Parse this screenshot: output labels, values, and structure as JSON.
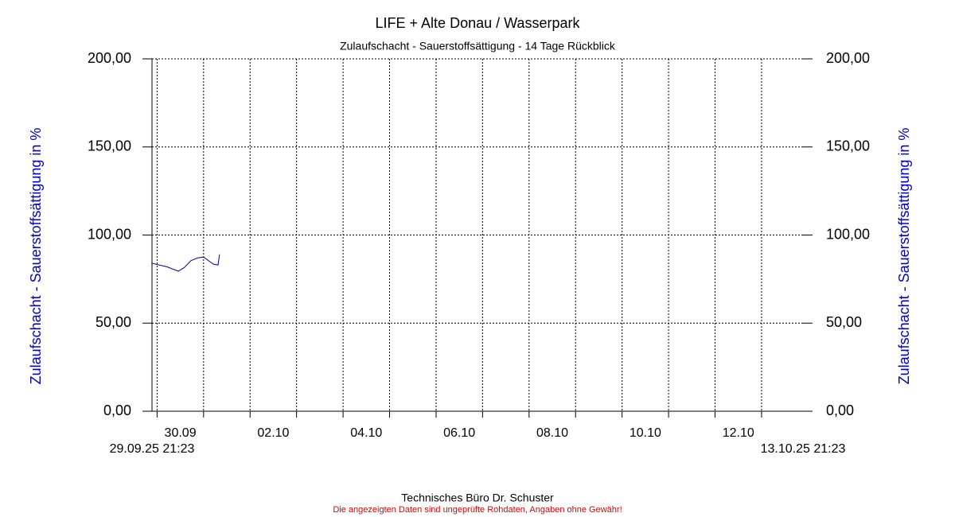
{
  "chart_data": {
    "type": "line",
    "title": "LIFE + Alte Donau / Wasserpark",
    "subtitle": "Zulaufschacht - Sauerstoffsättigung - 14 Tage Rückblick",
    "ylabel": "Zulaufschacht - Sauerstoffsättigung in %",
    "footer": "Technisches Büro Dr. Schuster",
    "disclaimer": "Die angezeigten Daten sind ungeprüfte Rohdaten, Angaben ohne Gewähr!",
    "xlim": [
      {
        "value": "2025-09-29T21:23",
        "label": "29.09.25 21:23"
      },
      {
        "value": "2025-10-13T21:23",
        "label": "13.10.25 21:23"
      }
    ],
    "xticks": [
      {
        "value": "2025-09-30T12:00",
        "label": "30.09"
      },
      {
        "value": "2025-10-02T12:00",
        "label": "02.10"
      },
      {
        "value": "2025-10-04T12:00",
        "label": "04.10"
      },
      {
        "value": "2025-10-06T12:00",
        "label": "06.10"
      },
      {
        "value": "2025-10-08T12:00",
        "label": "08.10"
      },
      {
        "value": "2025-10-10T12:00",
        "label": "10.10"
      },
      {
        "value": "2025-10-12T12:00",
        "label": "12.10"
      }
    ],
    "xgrid": [
      "2025-09-30T00:00",
      "2025-10-01T00:00",
      "2025-10-02T00:00",
      "2025-10-03T00:00",
      "2025-10-04T00:00",
      "2025-10-05T00:00",
      "2025-10-06T00:00",
      "2025-10-07T00:00",
      "2025-10-08T00:00",
      "2025-10-09T00:00",
      "2025-10-10T00:00",
      "2025-10-11T00:00",
      "2025-10-12T00:00",
      "2025-10-13T00:00"
    ],
    "ylim": [
      0,
      200
    ],
    "yticks": [
      {
        "value": 0,
        "label": "0,00"
      },
      {
        "value": 50,
        "label": "50,00"
      },
      {
        "value": 100,
        "label": "100,00"
      },
      {
        "value": 150,
        "label": "150,00"
      },
      {
        "value": 200,
        "label": "200,00"
      }
    ],
    "grid": true,
    "x": [
      "2025-09-29T21:23",
      "2025-09-30T01:00",
      "2025-09-30T05:00",
      "2025-09-30T11:00",
      "2025-09-30T14:00",
      "2025-09-30T17:30",
      "2025-09-30T21:00",
      "2025-10-01T00:00",
      "2025-10-01T02:30",
      "2025-10-01T05:00",
      "2025-10-01T07:30",
      "2025-10-01T08:15"
    ],
    "series": [
      {
        "color": "#0000a0",
        "values": [
          84,
          83,
          82,
          79.5,
          81.5,
          85.5,
          87,
          87.5,
          85.5,
          83.5,
          83,
          89
        ]
      }
    ]
  }
}
